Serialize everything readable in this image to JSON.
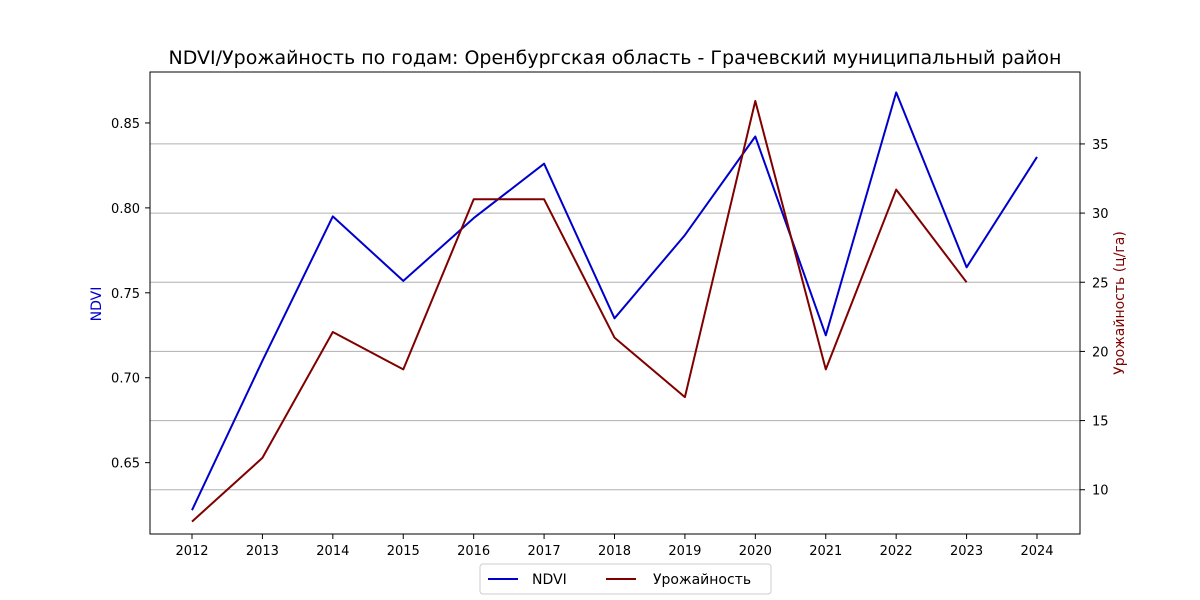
{
  "chart_data": {
    "type": "line",
    "title": "NDVI/Урожайность по годам: Оренбургская область - Грачевский муниципальный район",
    "xlabel": "",
    "ylabel_left": "NDVI",
    "ylabel_right": "Урожайность (ц/га)",
    "x": [
      2012,
      2013,
      2014,
      2015,
      2016,
      2017,
      2018,
      2019,
      2020,
      2021,
      2022,
      2023,
      2024
    ],
    "x_tick_labels": [
      "2012",
      "2013",
      "2014",
      "2015",
      "2016",
      "2017",
      "2018",
      "2019",
      "2020",
      "2021",
      "2022",
      "2023",
      "2024"
    ],
    "y_left_ticks": [
      "0.65",
      "0.70",
      "0.75",
      "0.80",
      "0.85"
    ],
    "y_right_ticks": [
      "10",
      "15",
      "20",
      "25",
      "30",
      "35"
    ],
    "ylim_left": [
      0.608,
      0.88
    ],
    "ylim_right": [
      6.8,
      40.2
    ],
    "grid": "horizontal, right axis",
    "legend_position": "bottom-center",
    "series": [
      {
        "name": "NDVI",
        "axis": "left",
        "color": "#0000cc",
        "values": [
          0.622,
          0.71,
          0.795,
          0.757,
          0.794,
          0.826,
          0.735,
          0.784,
          0.842,
          0.725,
          0.868,
          0.765,
          0.83
        ]
      },
      {
        "name": "Урожайность",
        "axis": "right",
        "color": "#800000",
        "values": [
          7.7,
          12.3,
          21.4,
          18.7,
          31.0,
          31.0,
          21.0,
          16.7,
          38.1,
          18.7,
          31.7,
          25.0,
          null
        ]
      }
    ]
  }
}
